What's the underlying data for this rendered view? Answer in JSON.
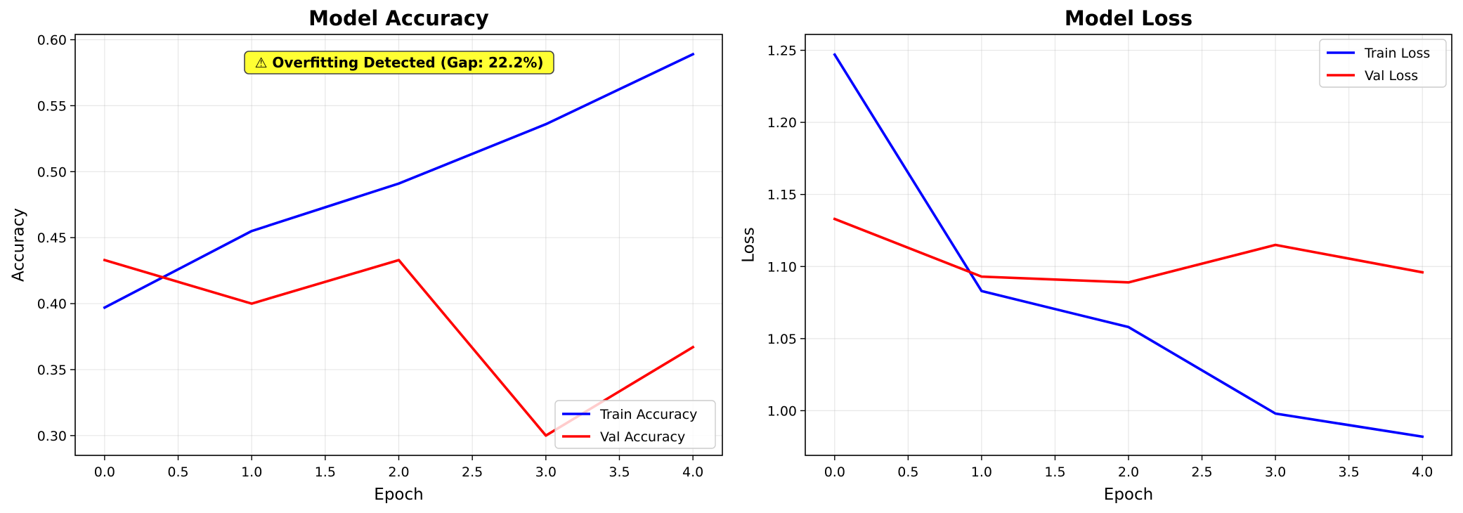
{
  "chart_data": [
    {
      "type": "line",
      "title": "Model Accuracy",
      "xlabel": "Epoch",
      "ylabel": "Accuracy",
      "x": [
        0,
        1,
        2,
        3,
        4
      ],
      "xlim": [
        -0.2,
        4.2
      ],
      "ylim": [
        0.285,
        0.604
      ],
      "xticks": [
        0.0,
        0.5,
        1.0,
        1.5,
        2.0,
        2.5,
        3.0,
        3.5,
        4.0
      ],
      "xtick_labels": [
        "0.0",
        "0.5",
        "1.0",
        "1.5",
        "2.0",
        "2.5",
        "3.0",
        "3.5",
        "4.0"
      ],
      "yticks": [
        0.3,
        0.35,
        0.4,
        0.45,
        0.5,
        0.55,
        0.6
      ],
      "ytick_labels": [
        "0.30",
        "0.35",
        "0.40",
        "0.45",
        "0.50",
        "0.55",
        "0.60"
      ],
      "grid": true,
      "legend_position": "lower-right",
      "series": [
        {
          "name": "Train Accuracy",
          "color": "#0000ff",
          "values": [
            0.397,
            0.455,
            0.491,
            0.536,
            0.589
          ]
        },
        {
          "name": "Val Accuracy",
          "color": "#ff0000",
          "values": [
            0.433,
            0.4,
            0.433,
            0.3,
            0.367
          ]
        }
      ],
      "annotation": {
        "text": "⚠ Overfitting Detected (Gap: 22.2%)",
        "background": "#ffff33",
        "position": "top-center"
      }
    },
    {
      "type": "line",
      "title": "Model Loss",
      "xlabel": "Epoch",
      "ylabel": "Loss",
      "x": [
        0,
        1,
        2,
        3,
        4
      ],
      "xlim": [
        -0.2,
        4.2
      ],
      "ylim": [
        0.969,
        1.261
      ],
      "xticks": [
        0.0,
        0.5,
        1.0,
        1.5,
        2.0,
        2.5,
        3.0,
        3.5,
        4.0
      ],
      "xtick_labels": [
        "0.0",
        "0.5",
        "1.0",
        "1.5",
        "2.0",
        "2.5",
        "3.0",
        "3.5",
        "4.0"
      ],
      "yticks": [
        1.0,
        1.05,
        1.1,
        1.15,
        1.2,
        1.25
      ],
      "ytick_labels": [
        "1.00",
        "1.05",
        "1.10",
        "1.15",
        "1.20",
        "1.25"
      ],
      "grid": true,
      "legend_position": "upper-right",
      "series": [
        {
          "name": "Train Loss",
          "color": "#0000ff",
          "values": [
            1.247,
            1.083,
            1.058,
            0.998,
            0.982
          ]
        },
        {
          "name": "Val Loss",
          "color": "#ff0000",
          "values": [
            1.133,
            1.093,
            1.089,
            1.115,
            1.096
          ]
        }
      ]
    }
  ]
}
